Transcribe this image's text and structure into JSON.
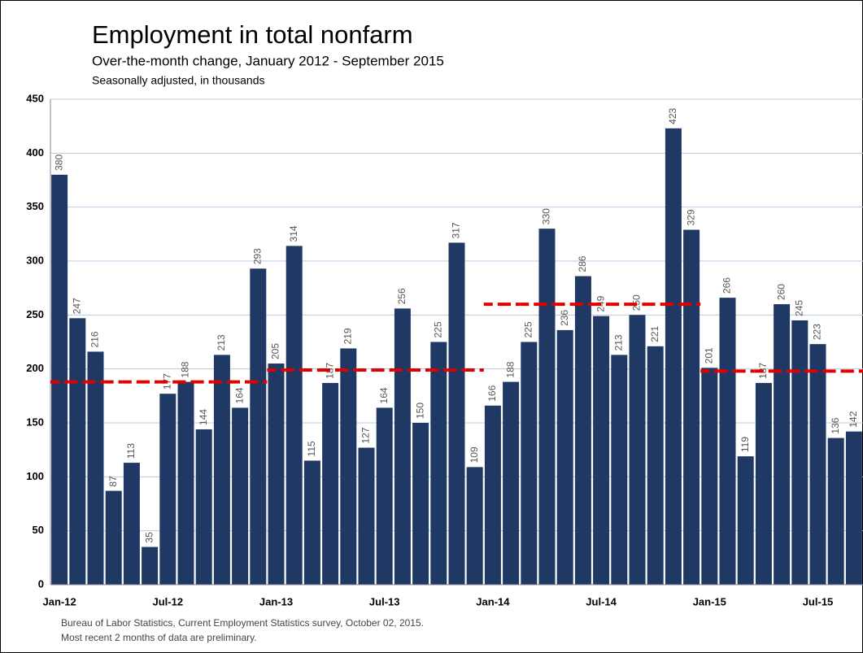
{
  "chart_data": {
    "type": "bar",
    "title": "Employment in total nonfarm",
    "subtitle": "Over-the-month change, January 2012 - September 2015",
    "unit_note": "Seasonally adjusted, in thousands",
    "footnotes": [
      "Bureau of Labor Statistics, Current Employment Statistics survey, October 02, 2015.",
      "Most recent 2 months of data are preliminary."
    ],
    "categories": [
      "Jan-12",
      null,
      null,
      null,
      null,
      null,
      "Jul-12",
      null,
      null,
      null,
      null,
      null,
      "Jan-13",
      null,
      null,
      null,
      null,
      null,
      "Jul-13",
      null,
      null,
      null,
      null,
      null,
      "Jan-14",
      null,
      null,
      null,
      null,
      null,
      "Jul-14",
      null,
      null,
      null,
      null,
      null,
      "Jan-15",
      null,
      null,
      null,
      null,
      null,
      "Jul-15",
      null,
      null
    ],
    "values": [
      380,
      247,
      216,
      87,
      113,
      35,
      177,
      188,
      144,
      213,
      164,
      293,
      205,
      314,
      115,
      187,
      219,
      127,
      164,
      256,
      150,
      225,
      317,
      109,
      166,
      188,
      225,
      330,
      236,
      286,
      249,
      213,
      250,
      221,
      423,
      329,
      201,
      266,
      119,
      187,
      260,
      245,
      223,
      136,
      142
    ],
    "color": "#1f3864",
    "average_values": [
      188,
      188,
      188,
      188,
      188,
      188,
      188,
      188,
      188,
      188,
      188,
      188,
      199,
      199,
      199,
      199,
      199,
      199,
      199,
      199,
      199,
      199,
      199,
      199,
      260,
      260,
      260,
      260,
      260,
      260,
      260,
      260,
      260,
      260,
      260,
      260,
      198,
      198,
      198,
      198,
      198,
      198,
      198,
      198,
      198
    ],
    "average_color": "#e00000",
    "ylim": [
      0,
      450
    ],
    "yticks": [
      0,
      50,
      100,
      150,
      200,
      250,
      300,
      350,
      400,
      450
    ],
    "grid": true
  }
}
